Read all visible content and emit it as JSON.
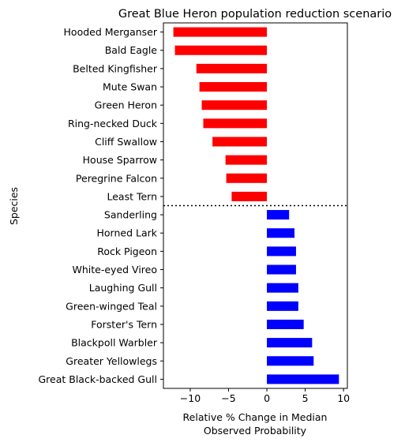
{
  "chart_data": {
    "type": "bar",
    "orientation": "horizontal",
    "title": "Great Blue Heron population reduction scenario",
    "xlabel_lines": [
      "Relative % Change in Median",
      "Observed Probability"
    ],
    "ylabel": "Species",
    "xlim": [
      -13.5,
      10.5
    ],
    "xticks": [
      -10,
      -5,
      0,
      5,
      10
    ],
    "xtick_labels": [
      "−10",
      "−5",
      "0",
      "5",
      "10"
    ],
    "grid": false,
    "categories": [
      "Hooded Merganser",
      "Bald Eagle",
      "Belted Kingfisher",
      "Mute Swan",
      "Green Heron",
      "Ring-necked Duck",
      "Cliff Swallow",
      "House Sparrow",
      "Peregrine Falcon",
      "Least Tern",
      "Sanderling",
      "Horned Lark",
      "Rock Pigeon",
      "White-eyed Vireo",
      "Laughing Gull",
      "Green-winged Teal",
      "Forster's Tern",
      "Blackpoll Warbler",
      "Greater Yellowlegs",
      "Great Black-backed Gull"
    ],
    "values": [
      -12.2,
      -12.0,
      -9.2,
      -8.8,
      -8.5,
      -8.3,
      -7.1,
      -5.4,
      -5.3,
      -4.6,
      2.9,
      3.6,
      3.8,
      3.8,
      4.1,
      4.1,
      4.8,
      5.9,
      6.1,
      9.4
    ],
    "colors": {
      "negative": "#ff0000",
      "positive": "#0000ff",
      "divider": "#000000"
    },
    "divider": {
      "style": "dotted",
      "between": [
        "Least Tern",
        "Sanderling"
      ]
    }
  }
}
